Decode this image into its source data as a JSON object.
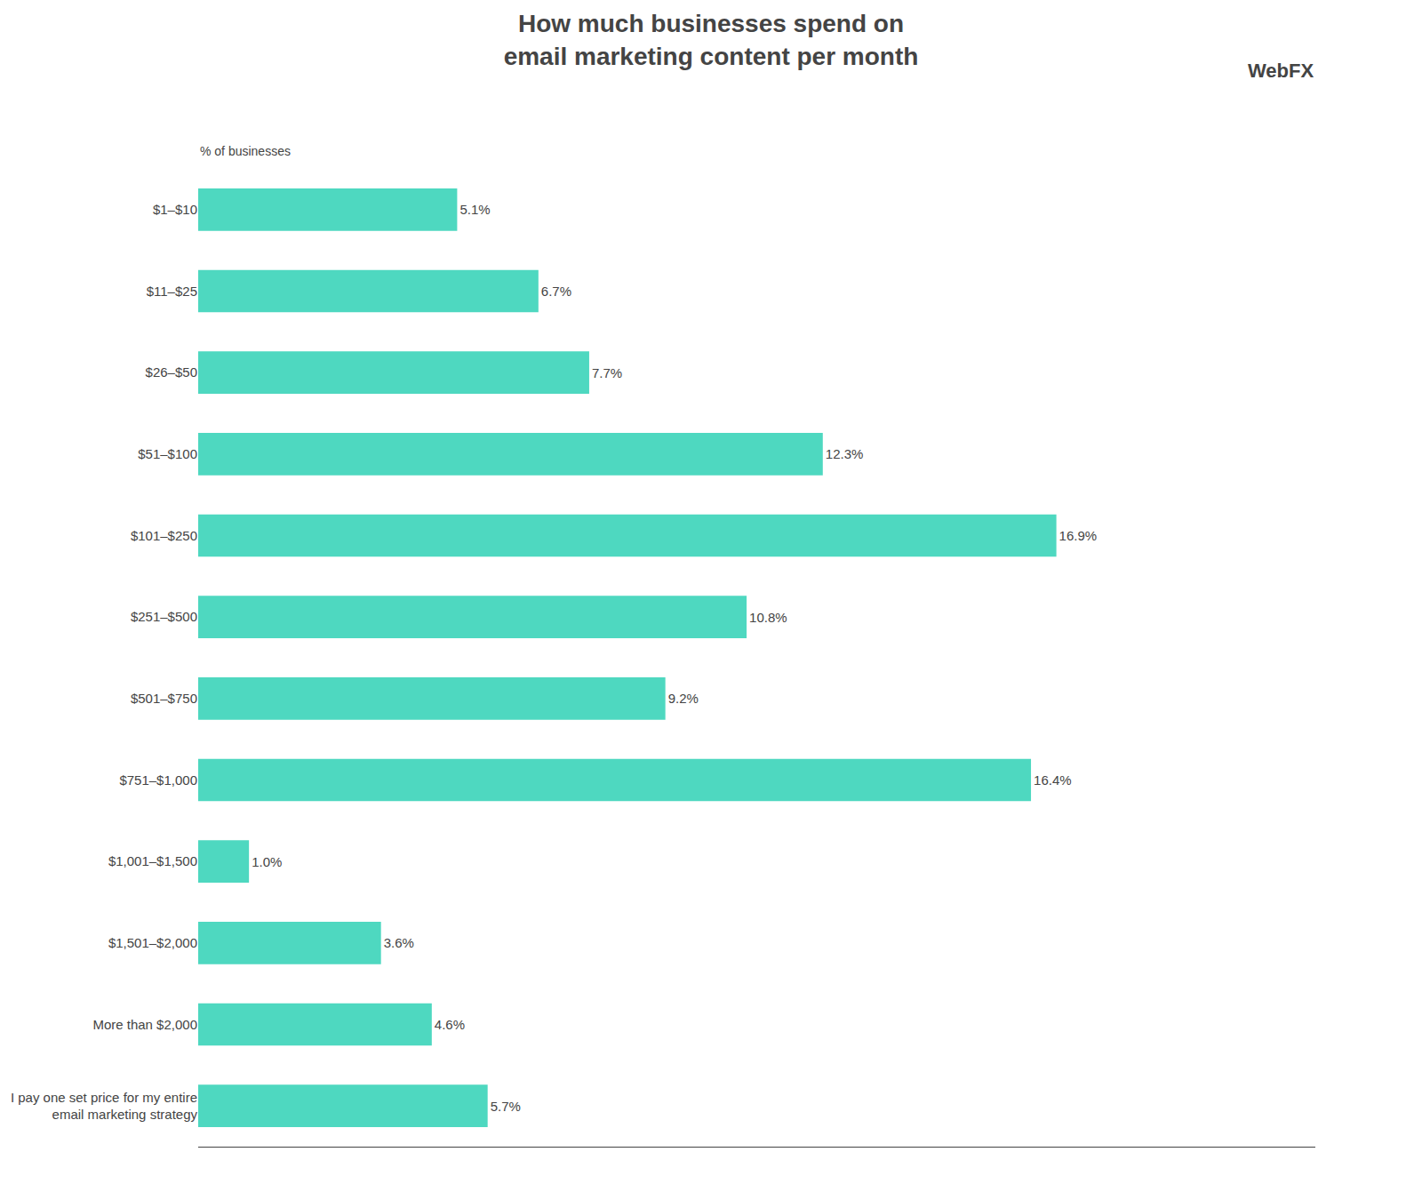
{
  "chart_data": {
    "type": "bar",
    "orientation": "horizontal",
    "title": "How much businesses spend on\nemail marketing content per month",
    "xlabel": "% of businesses",
    "categories": [
      "$1–$10",
      "$11–$25",
      "$26–$50",
      "$51–$100",
      "$101–$250",
      "$251–$500",
      "$501–$750",
      "$751–$1,000",
      "$1,001–$1,500",
      "$1,501–$2,000",
      "More than $2,000",
      "I pay one set price for my entire\nemail marketing strategy"
    ],
    "values": [
      5.1,
      6.7,
      7.7,
      12.3,
      16.9,
      10.8,
      9.2,
      16.4,
      1.0,
      3.6,
      4.6,
      5.7
    ],
    "value_labels": [
      "5.1%",
      "6.7%",
      "7.7%",
      "12.3%",
      "16.9%",
      "10.8%",
      "9.2%",
      "16.4%",
      "1.0%",
      "3.6%",
      "4.6%",
      "5.7%"
    ],
    "data_labels": true,
    "color": "#4ED8C0",
    "xlim": [
      0,
      22
    ],
    "grid": false,
    "tick_labels": "y",
    "annotations": [
      "Web",
      "FX"
    ]
  }
}
